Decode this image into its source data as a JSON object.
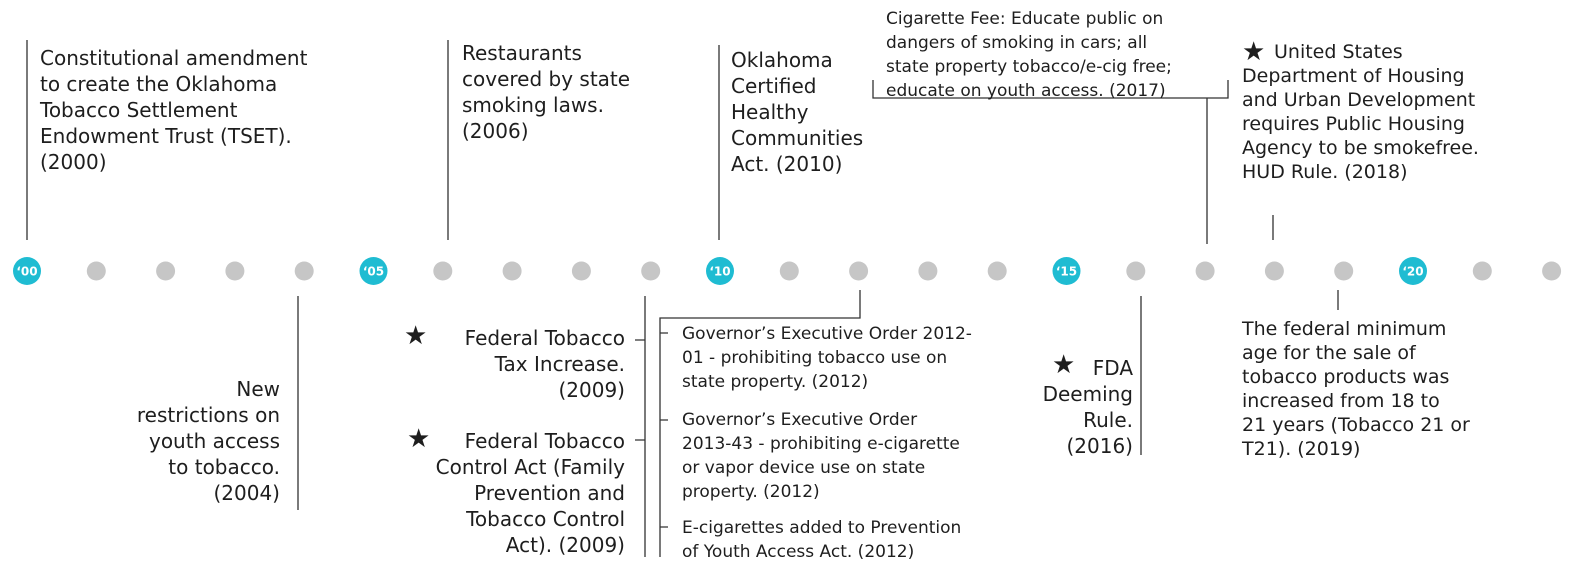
{
  "timeline": {
    "year_labels": [
      "‘00",
      "‘05",
      "‘10",
      "‘15",
      "‘20"
    ],
    "events": [
      {
        "lines": [
          "Constitutional amendment",
          "to create the Oklahoma",
          "Tobacco Settlement",
          "Endowment Trust (TSET).",
          "(2000)"
        ]
      },
      {
        "lines": [
          "Restaurants",
          "covered by state",
          "smoking laws.",
          "(2006)"
        ]
      },
      {
        "lines": [
          "Oklahoma",
          "Certified",
          "Healthy",
          "Communities",
          "Act. (2010)"
        ]
      },
      {
        "lines": [
          "Cigarette Fee:  Educate public on",
          "dangers of smoking in cars; all",
          "state property tobacco/e-cig free;",
          "educate on youth access. (2017)"
        ]
      },
      {
        "lines": [
          "United States",
          "Department of Housing",
          "and Urban Development",
          "requires Public Housing",
          "Agency to be smokefree.",
          "HUD Rule. (2018)"
        ]
      },
      {
        "lines": [
          "New",
          "restrictions on",
          "youth access",
          "to tobacco.",
          "(2004)"
        ]
      },
      {
        "lines": [
          "Federal Tobacco",
          "Tax Increase.",
          "(2009)"
        ]
      },
      {
        "lines": [
          "Federal Tobacco",
          "Control Act (Family",
          "Prevention and",
          "Tobacco Control",
          "Act). (2009)"
        ]
      },
      {
        "lines": [
          "Governor’s Executive Order 2012-",
          "01 - prohibiting tobacco use on",
          "state property. (2012)"
        ]
      },
      {
        "lines": [
          "Governor’s Executive Order",
          "2013-43 - prohibiting e-cigarette",
          "or vapor device use on state",
          "property. (2012)"
        ]
      },
      {
        "lines": [
          "E-cigarettes added to Prevention",
          "of Youth Access Act. (2012)"
        ]
      },
      {
        "lines": [
          "FDA",
          "Deeming",
          "Rule.",
          "(2016)"
        ]
      },
      {
        "lines": [
          "The federal minimum",
          "age for the sale of",
          "tobacco products was",
          "increased from 18 to",
          "21 years (Tobacco 21 or",
          "T21). (2019)"
        ]
      }
    ]
  }
}
